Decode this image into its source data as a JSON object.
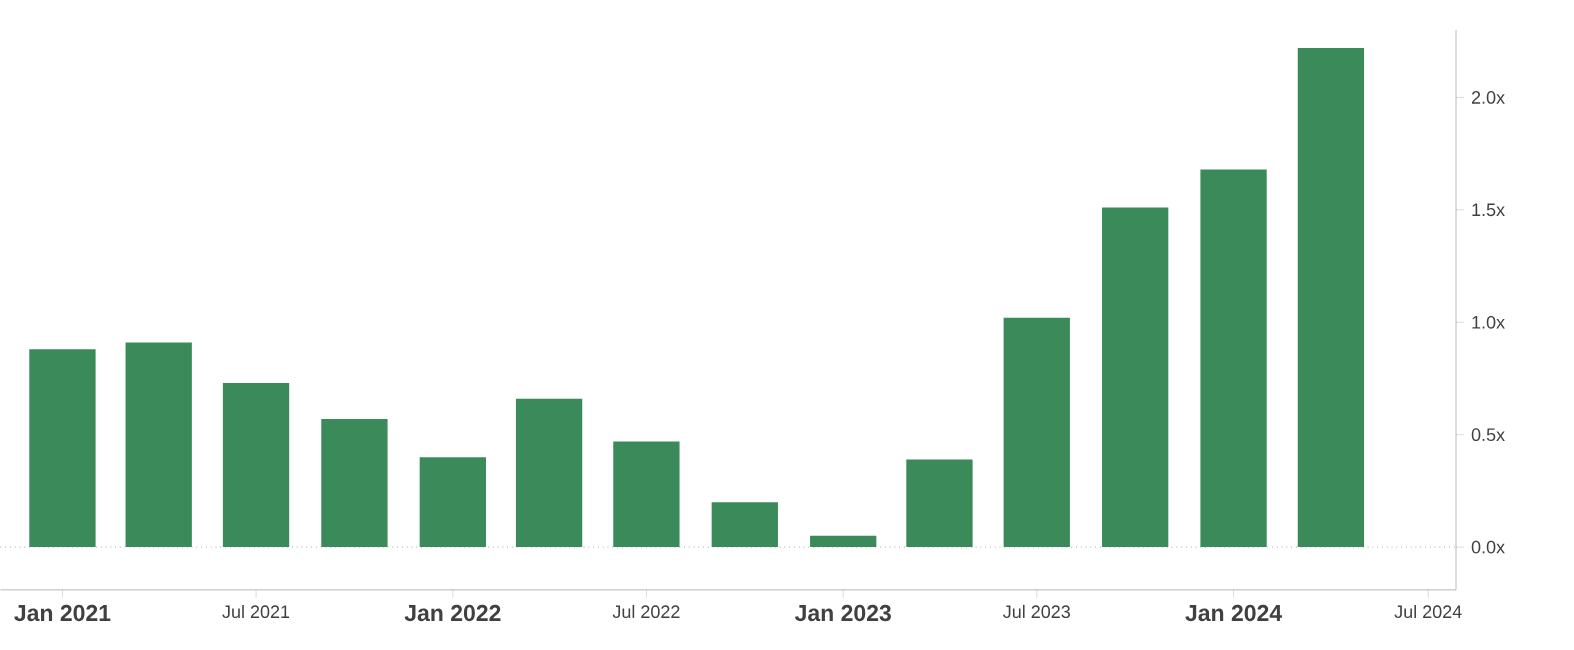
{
  "chart_data": {
    "type": "bar",
    "x": [
      "2021-01",
      "2021-04",
      "2021-07",
      "2021-10",
      "2022-01",
      "2022-04",
      "2022-07",
      "2022-10",
      "2023-01",
      "2023-04",
      "2023-07",
      "2023-10",
      "2024-01",
      "2024-04"
    ],
    "values": [
      0.88,
      0.91,
      0.73,
      0.57,
      0.4,
      0.66,
      0.47,
      0.2,
      0.05,
      0.39,
      1.02,
      1.51,
      1.68,
      2.22
    ],
    "color": "#3b8b5a",
    "xlim": [
      "2020-11-04",
      "2024-07-27"
    ],
    "xticks": [
      {
        "value": "2021-01",
        "label": "Jan 2021"
      },
      {
        "value": "2021-07",
        "label": "Jul 2021"
      },
      {
        "value": "2022-01",
        "label": "Jan 2022"
      },
      {
        "value": "2022-07",
        "label": "Jul 2022"
      },
      {
        "value": "2023-01",
        "label": "Jan 2023"
      },
      {
        "value": "2023-07",
        "label": "Jul 2023"
      },
      {
        "value": "2024-01",
        "label": "Jan 2024"
      },
      {
        "value": "2024-07",
        "label": "Jul 2024"
      }
    ],
    "ylim": [
      -0.19,
      2.3
    ],
    "yticks": [
      {
        "value": 0,
        "label": "0.0x"
      },
      {
        "value": 0.5,
        "label": "0.5x"
      },
      {
        "value": 1,
        "label": "1.0x"
      },
      {
        "value": 1.5,
        "label": "1.5x"
      },
      {
        "value": 2,
        "label": "2.0x"
      }
    ],
    "ref_lines": [
      {
        "axis": "y",
        "value": 0,
        "color": "#777777",
        "line_style": "dotted"
      }
    ]
  }
}
